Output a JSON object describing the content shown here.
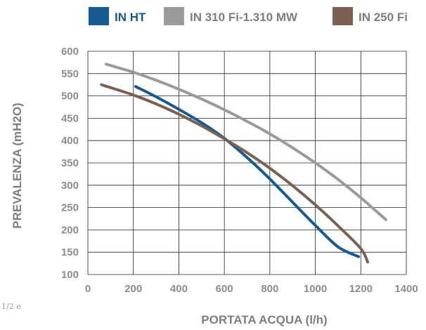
{
  "side_note": "1/2 e",
  "chart_data": {
    "type": "line",
    "xlabel": "PORTATA ACQUA (l/h)",
    "ylabel": "PREVALENZA (mH2O)",
    "xlim": [
      0,
      1400
    ],
    "ylim": [
      100,
      600
    ],
    "x_ticks": [
      0,
      200,
      400,
      600,
      800,
      1000,
      1200,
      1400
    ],
    "y_ticks": [
      100,
      150,
      200,
      250,
      300,
      350,
      400,
      450,
      500,
      550,
      600
    ],
    "grid": true,
    "legend_position": "top",
    "series": [
      {
        "name": "IN HT",
        "color": "#155a92",
        "points": [
          [
            210,
            521
          ],
          [
            300,
            498
          ],
          [
            400,
            470
          ],
          [
            500,
            440
          ],
          [
            600,
            405
          ],
          [
            700,
            362
          ],
          [
            800,
            314
          ],
          [
            900,
            262
          ],
          [
            1000,
            210
          ],
          [
            1100,
            162
          ],
          [
            1190,
            140
          ]
        ]
      },
      {
        "name": "IN 310 Fi-1.310 MW",
        "color": "#9a9a9a",
        "points": [
          [
            80,
            571
          ],
          [
            200,
            553
          ],
          [
            300,
            535
          ],
          [
            400,
            515
          ],
          [
            500,
            493
          ],
          [
            600,
            469
          ],
          [
            700,
            443
          ],
          [
            800,
            415
          ],
          [
            900,
            384
          ],
          [
            1000,
            350
          ],
          [
            1100,
            313
          ],
          [
            1200,
            272
          ],
          [
            1310,
            223
          ]
        ]
      },
      {
        "name": "IN 250 Fi",
        "color": "#7a6151",
        "points": [
          [
            60,
            525
          ],
          [
            200,
            502
          ],
          [
            300,
            482
          ],
          [
            400,
            459
          ],
          [
            500,
            433
          ],
          [
            600,
            404
          ],
          [
            700,
            373
          ],
          [
            800,
            338
          ],
          [
            900,
            299
          ],
          [
            1000,
            256
          ],
          [
            1100,
            209
          ],
          [
            1200,
            158
          ],
          [
            1230,
            128
          ]
        ]
      }
    ]
  }
}
